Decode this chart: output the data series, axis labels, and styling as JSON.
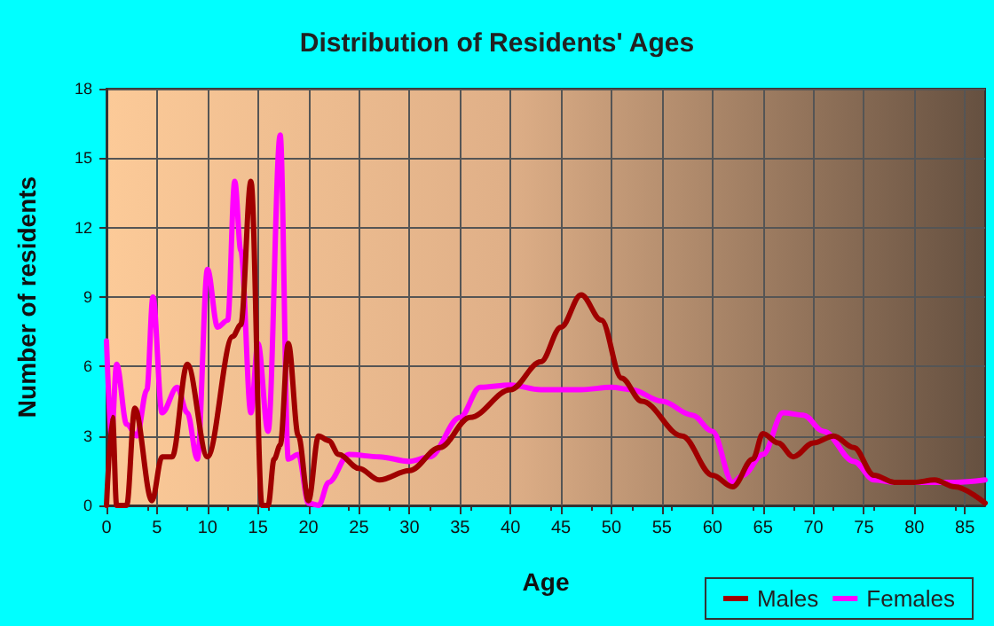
{
  "chart_data": {
    "type": "line",
    "title": "Distribution of Residents' Ages",
    "xlabel": "Age",
    "ylabel": "Number of residents",
    "xlim": [
      0,
      87
    ],
    "xticks": [
      0,
      5,
      10,
      15,
      20,
      25,
      30,
      35,
      40,
      45,
      50,
      55,
      60,
      65,
      70,
      75,
      80,
      85
    ],
    "ylim": [
      0,
      18
    ],
    "yticks": [
      0,
      3,
      6,
      9,
      12,
      15,
      18
    ],
    "grid": true,
    "legend": "bottom right",
    "marker": "none",
    "line_style": "solid",
    "series": [
      {
        "name": "Males",
        "color": "#a00000",
        "x": [
          0,
          0.6,
          1,
          2,
          2.8,
          4.5,
          5.5,
          6.5,
          8,
          10,
          12.5,
          13.3,
          14.3,
          15.4,
          16,
          16.6,
          17.2,
          18,
          19,
          20,
          21,
          22,
          23,
          25,
          27,
          30,
          33,
          36,
          40,
          43,
          45,
          47,
          49,
          51,
          53,
          57,
          60,
          62,
          64,
          65,
          66.5,
          68,
          70,
          72,
          74,
          76,
          78,
          80,
          82,
          84,
          87
        ],
        "values": [
          0,
          3.8,
          0,
          0,
          4.2,
          0.2,
          2.1,
          2.1,
          6.1,
          2.1,
          7.3,
          7.8,
          14,
          0,
          0,
          2,
          2.6,
          7,
          3,
          0.2,
          3,
          2.8,
          2.2,
          1.6,
          1.1,
          1.5,
          2.5,
          3.8,
          5,
          6.2,
          7.7,
          9.1,
          8,
          5.5,
          4.5,
          3,
          1.3,
          0.8,
          2,
          3.1,
          2.7,
          2.1,
          2.7,
          3,
          2.5,
          1.3,
          1,
          1,
          1.1,
          0.8,
          0.1
        ]
      },
      {
        "name": "Females",
        "color": "#ff00ff",
        "x": [
          0,
          0.5,
          1,
          2,
          3,
          4,
          4.6,
          5.5,
          7,
          8,
          9,
          10,
          11,
          12,
          12.7,
          13.3,
          14.3,
          15,
          16,
          17.2,
          18,
          19,
          20,
          21,
          22,
          24,
          27,
          30,
          32,
          35,
          37,
          40,
          43,
          47,
          50,
          52,
          55,
          58,
          60,
          62,
          63,
          65,
          67,
          69,
          71,
          74,
          76,
          78,
          80,
          84,
          87
        ],
        "values": [
          7.1,
          3,
          6.1,
          3.5,
          3,
          5,
          9,
          4,
          5.1,
          4,
          2,
          10.2,
          7.7,
          8,
          14,
          11,
          4,
          7,
          3.2,
          16,
          2,
          2.2,
          0.1,
          0,
          1,
          2.2,
          2.1,
          1.9,
          2.1,
          3.8,
          5.1,
          5.2,
          5,
          5,
          5.1,
          5,
          4.5,
          3.9,
          3.2,
          1,
          1.3,
          2.2,
          4,
          3.9,
          3.2,
          1.9,
          1.1,
          1,
          1,
          1,
          1.1
        ]
      }
    ]
  }
}
